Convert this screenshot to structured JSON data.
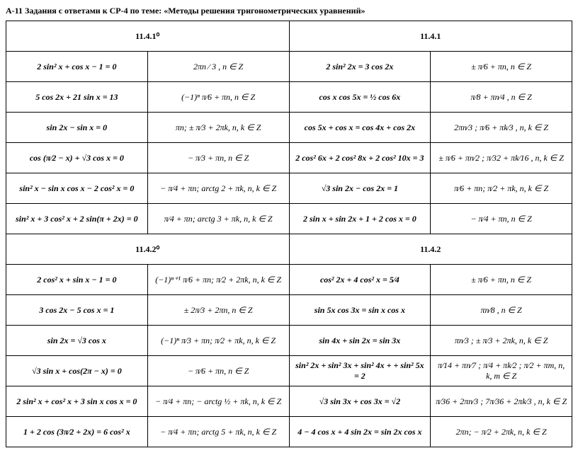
{
  "title": "А-11 Задания с ответами к СР-4 по теме: «Методы решения тригонометрических уравнений»",
  "sections": {
    "s1": "11.4.1⁰",
    "s2": "11.4.1",
    "s3": "11.4.2⁰",
    "s4": "11.4.2"
  },
  "rows1": [
    {
      "eq1": "2 sin² x + cos x − 1 = 0",
      "ans1": "2πn ⁄ 3 , n ∈ Z",
      "eq2": "2 sin² 2x = 3 cos 2x",
      "ans2": "± π⁄6 + πn, n ∈ Z"
    },
    {
      "eq1": "5 cos 2x + 21 sin x = 13",
      "ans1": "(−1)ⁿ π⁄6 + πn, n ∈ Z",
      "eq2": "cos x cos 5x = ½ cos 6x",
      "ans2": "π⁄8 + πn⁄4 , n ∈ Z"
    },
    {
      "eq1": "sin 2x − sin x = 0",
      "ans1": "πn; ± π⁄3 + 2πk, n, k ∈ Z",
      "eq2": "cos 5x + cos x = cos 4x + cos 2x",
      "ans2": "2πn⁄3 ; π⁄6 + πk⁄3 , n, k ∈ Z"
    },
    {
      "eq1": "cos (π⁄2 − x) + √3 cos x = 0",
      "ans1": "− π⁄3 + πn, n ∈ Z",
      "eq2": "2 cos² 6x + 2 cos² 8x + 2 cos² 10x = 3",
      "ans2": "± π⁄6 + πn⁄2 ; π⁄32 + πk⁄16 , n, k ∈ Z"
    },
    {
      "eq1": "sin² x − sin x cos x − 2 cos² x = 0",
      "ans1": "− π⁄4 + πn; arctg 2 + πk, n, k ∈ Z",
      "eq2": "√3 sin 2x − cos 2x = 1",
      "ans2": "π⁄6 + πn; π⁄2 + πk, n, k ∈ Z"
    },
    {
      "eq1": "sin² x + 3 cos² x + 2 sin(π + 2x) = 0",
      "ans1": "π⁄4 + πn; arctg 3 + πk, n, k ∈ Z",
      "eq2": "2 sin x + sin 2x + 1 + 2 cos x = 0",
      "ans2": "− π⁄4 + πn, n ∈ Z"
    }
  ],
  "rows2": [
    {
      "eq1": "2 cos² x + sin x − 1 = 0",
      "ans1": "(−1)ⁿ⁺¹ π⁄6 + πn; π⁄2 + 2πk, n, k ∈ Z",
      "eq2": "cos² 2x + 4 cos² x = 5⁄4",
      "ans2": "± π⁄6 + πn, n ∈ Z"
    },
    {
      "eq1": "3 cos 2x − 5 cos x = 1",
      "ans1": "± 2π⁄3 + 2πn, n ∈ Z",
      "eq2": "sin 5x cos 3x = sin x cos x",
      "ans2": "πn⁄8 , n ∈ Z"
    },
    {
      "eq1": "sin 2x = √3 cos x",
      "ans1": "(−1)ⁿ π⁄3 + πn; π⁄2 + πk, n, k ∈ Z",
      "eq2": "sin 4x + sin 2x = sin 3x",
      "ans2": "πn⁄3 ; ± π⁄3 + 2πk, n, k ∈ Z"
    },
    {
      "eq1": "√3 sin x + cos(2π − x) = 0",
      "ans1": "− π⁄6 + πn, n ∈ Z",
      "eq2": "sin² 2x + sin² 3x + sin² 4x + + sin² 5x = 2",
      "ans2": "π⁄14 + πn⁄7 ; π⁄4 + πk⁄2 ; π⁄2 + πm, n, k, m ∈ Z"
    },
    {
      "eq1": "2 sin² x + cos² x + 3 sin x cos x = 0",
      "ans1": "− π⁄4 + πn; − arctg ½ + πk, n, k ∈ Z",
      "eq2": "√3 sin 3x + cos 3x = √2",
      "ans2": "π⁄36 + 2πn⁄3 ; 7π⁄36 + 2πk⁄3 , n, k ∈ Z"
    },
    {
      "eq1": "1 + 2 cos (3π⁄2 + 2x) = 6 cos² x",
      "ans1": "− π⁄4 + πn; arctg 5 + πk, n, k ∈ Z",
      "eq2": "4 − 4 cos x + 4 sin 2x = sin 2x cos x",
      "ans2": "2πn; − π⁄2 + 2πk, n, k ∈ Z"
    }
  ]
}
